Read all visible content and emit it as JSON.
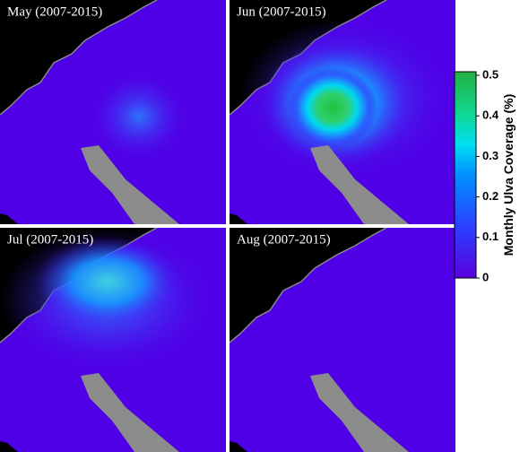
{
  "panels": [
    {
      "title": "May (2007-2015)"
    },
    {
      "title": "Jun (2007-2015)"
    },
    {
      "title": "Jul (2007-2015)"
    },
    {
      "title": "Aug (2007-2015)"
    }
  ],
  "colorbar": {
    "label": "Monthly Ulva Coverage (%)",
    "range": [
      0,
      0.5
    ],
    "ticks": [
      0,
      0.1,
      0.2,
      0.3,
      0.4,
      0.5
    ]
  }
}
